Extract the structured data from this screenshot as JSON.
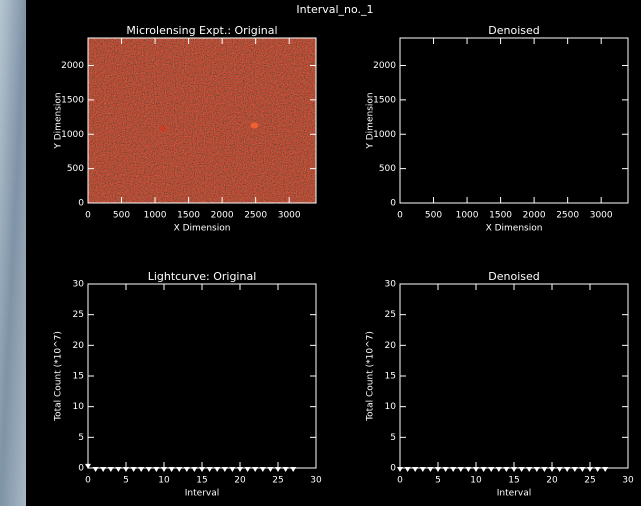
{
  "figure_title": "Interval_no._1",
  "chart_data": [
    {
      "type": "image",
      "title": "Microlensing Expt.:  Original",
      "x_label": "X Dimension",
      "y_label": "Y Dimension",
      "xlim": [
        0,
        3400
      ],
      "ylim": [
        0,
        2400
      ],
      "xticks": [
        0,
        500,
        1000,
        1500,
        2000,
        2500,
        3000
      ],
      "yticks": [
        0,
        500,
        1000,
        1500,
        2000
      ],
      "color": "#b01010"
    },
    {
      "type": "image",
      "title": "Denoised",
      "x_label": "X Dimension",
      "y_label": "Y Dimension",
      "xlim": [
        0,
        3400
      ],
      "ylim": [
        0,
        2400
      ],
      "xticks": [
        0,
        500,
        1000,
        1500,
        2000,
        2500,
        3000
      ],
      "yticks": [
        0,
        500,
        1000,
        1500,
        2000
      ],
      "color": "#000000"
    },
    {
      "type": "scatter",
      "title": "Lightcurve:  Original",
      "x_label": "Interval",
      "y_label": "Total Count (*10^7)",
      "xlim": [
        0,
        30
      ],
      "ylim": [
        0,
        30
      ],
      "xticks": [
        0,
        5,
        10,
        15,
        20,
        25,
        30
      ],
      "yticks": [
        0,
        5,
        10,
        15,
        20,
        25,
        30
      ],
      "color": "#ffffff",
      "x": [
        0,
        1,
        2,
        3,
        4,
        5,
        6,
        7,
        8,
        9,
        10,
        11,
        12,
        13,
        14,
        15,
        16,
        17,
        18,
        19,
        20,
        21,
        22,
        23,
        24,
        25,
        26,
        27
      ],
      "values": [
        0.5,
        0,
        0,
        0,
        0,
        0,
        0,
        0,
        0,
        0,
        0,
        0,
        0,
        0,
        0,
        0,
        0,
        0,
        0,
        0,
        0,
        0,
        0,
        0,
        0,
        0,
        0,
        0
      ]
    },
    {
      "type": "scatter",
      "title": "Denoised",
      "x_label": "Interval",
      "y_label": "Total Count (*10^7)",
      "xlim": [
        0,
        30
      ],
      "ylim": [
        0,
        30
      ],
      "xticks": [
        0,
        5,
        10,
        15,
        20,
        25,
        30
      ],
      "yticks": [
        0,
        5,
        10,
        15,
        20,
        25,
        30
      ],
      "color": "#ffffff",
      "x": [
        0,
        1,
        2,
        3,
        4,
        5,
        6,
        7,
        8,
        9,
        10,
        11,
        12,
        13,
        14,
        15,
        16,
        17,
        18,
        19,
        20,
        21,
        22,
        23,
        24,
        25,
        26,
        27
      ],
      "values": [
        0,
        0,
        0,
        0,
        0,
        0,
        0,
        0,
        0,
        0,
        0,
        0,
        0,
        0,
        0,
        0,
        0,
        0,
        0,
        0,
        0,
        0,
        0,
        0,
        0,
        0,
        0,
        0
      ]
    }
  ]
}
